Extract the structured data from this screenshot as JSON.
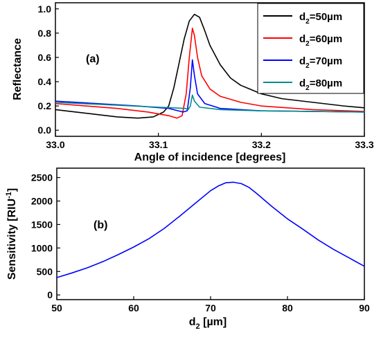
{
  "chart_data": [
    {
      "type": "line",
      "panel_label": "(a)",
      "xlabel": "Angle of incidence [degrees]",
      "ylabel": "Reflectance",
      "xlim": [
        33.0,
        33.3
      ],
      "ylim": [
        -0.05,
        1.05
      ],
      "xticks": [
        33.0,
        33.1,
        33.2,
        33.3
      ],
      "xtick_labels": [
        "33.0",
        "33.1",
        "33.2",
        "33.3"
      ],
      "yticks": [
        0.0,
        0.2,
        0.4,
        0.6,
        0.8,
        1.0
      ],
      "ytick_labels": [
        "0.0",
        "0.2",
        "0.4",
        "0.6",
        "0.8",
        "1.0"
      ],
      "grid": false,
      "legend_position": "top-right",
      "series": [
        {
          "name": "d2=50µm",
          "label_main": "d",
          "label_sub": "2",
          "label_rest": "=50µm",
          "color": "#000000",
          "points": [
            [
              33.0,
              0.17
            ],
            [
              33.02,
              0.15
            ],
            [
              33.04,
              0.13
            ],
            [
              33.06,
              0.11
            ],
            [
              33.08,
              0.1
            ],
            [
              33.095,
              0.11
            ],
            [
              33.105,
              0.15
            ],
            [
              33.11,
              0.2
            ],
            [
              33.115,
              0.35
            ],
            [
              33.12,
              0.55
            ],
            [
              33.125,
              0.75
            ],
            [
              33.13,
              0.9
            ],
            [
              33.135,
              0.955
            ],
            [
              33.14,
              0.93
            ],
            [
              33.145,
              0.82
            ],
            [
              33.15,
              0.7
            ],
            [
              33.16,
              0.54
            ],
            [
              33.17,
              0.43
            ],
            [
              33.18,
              0.37
            ],
            [
              33.2,
              0.3
            ],
            [
              33.22,
              0.26
            ],
            [
              33.25,
              0.23
            ],
            [
              33.28,
              0.2
            ],
            [
              33.3,
              0.185
            ]
          ]
        },
        {
          "name": "d2=60µm",
          "label_main": "d",
          "label_sub": "2",
          "label_rest": "=60µm",
          "color": "#ff0000",
          "points": [
            [
              33.0,
              0.22
            ],
            [
              33.03,
              0.2
            ],
            [
              33.06,
              0.18
            ],
            [
              33.09,
              0.15
            ],
            [
              33.11,
              0.12
            ],
            [
              33.118,
              0.1
            ],
            [
              33.123,
              0.12
            ],
            [
              33.127,
              0.3
            ],
            [
              33.13,
              0.6
            ],
            [
              33.133,
              0.84
            ],
            [
              33.135,
              0.78
            ],
            [
              33.138,
              0.6
            ],
            [
              33.142,
              0.45
            ],
            [
              33.15,
              0.34
            ],
            [
              33.16,
              0.28
            ],
            [
              33.18,
              0.23
            ],
            [
              33.2,
              0.2
            ],
            [
              33.25,
              0.17
            ],
            [
              33.3,
              0.155
            ]
          ]
        },
        {
          "name": "d2=70µm",
          "label_main": "d",
          "label_sub": "2",
          "label_rest": "=70µm",
          "color": "#0000ff",
          "points": [
            [
              33.0,
              0.24
            ],
            [
              33.04,
              0.22
            ],
            [
              33.08,
              0.2
            ],
            [
              33.11,
              0.18
            ],
            [
              33.124,
              0.15
            ],
            [
              33.128,
              0.16
            ],
            [
              33.131,
              0.35
            ],
            [
              33.133,
              0.58
            ],
            [
              33.135,
              0.45
            ],
            [
              33.138,
              0.3
            ],
            [
              33.145,
              0.22
            ],
            [
              33.16,
              0.18
            ],
            [
              33.2,
              0.16
            ],
            [
              33.3,
              0.15
            ]
          ]
        },
        {
          "name": "d2=80µm",
          "label_main": "d",
          "label_sub": "2",
          "label_rest": "=80µm",
          "color": "#008b8b",
          "points": [
            [
              33.0,
              0.23
            ],
            [
              33.05,
              0.21
            ],
            [
              33.1,
              0.19
            ],
            [
              33.126,
              0.18
            ],
            [
              33.129,
              0.17
            ],
            [
              33.131,
              0.2
            ],
            [
              33.133,
              0.29
            ],
            [
              33.135,
              0.24
            ],
            [
              33.14,
              0.19
            ],
            [
              33.16,
              0.17
            ],
            [
              33.2,
              0.16
            ],
            [
              33.3,
              0.15
            ]
          ]
        }
      ]
    },
    {
      "type": "line",
      "panel_label": "(b)",
      "xlabel_main": "d",
      "xlabel_sub": "2",
      "xlabel_rest": " [µm]",
      "ylabel_main": "Sensitivity [RIU",
      "ylabel_sup": "-1",
      "ylabel_rest": "]",
      "xlim": [
        50,
        90
      ],
      "ylim": [
        -100,
        2700
      ],
      "xticks": [
        50,
        60,
        70,
        80,
        90
      ],
      "xtick_labels": [
        "50",
        "60",
        "70",
        "80",
        "90"
      ],
      "yticks": [
        0,
        500,
        1000,
        1500,
        2000,
        2500
      ],
      "ytick_labels": [
        "0",
        "500",
        "1000",
        "1500",
        "2000",
        "2500"
      ],
      "grid": false,
      "series": [
        {
          "color": "#0000ff",
          "points": [
            [
              50,
              370
            ],
            [
              52,
              470
            ],
            [
              54,
              580
            ],
            [
              56,
              710
            ],
            [
              58,
              860
            ],
            [
              60,
              1020
            ],
            [
              62,
              1200
            ],
            [
              64,
              1420
            ],
            [
              66,
              1680
            ],
            [
              68,
              1950
            ],
            [
              70,
              2220
            ],
            [
              71,
              2320
            ],
            [
              72,
              2390
            ],
            [
              73,
              2400
            ],
            [
              74,
              2370
            ],
            [
              75,
              2290
            ],
            [
              76,
              2160
            ],
            [
              78,
              1880
            ],
            [
              80,
              1620
            ],
            [
              82,
              1400
            ],
            [
              84,
              1170
            ],
            [
              86,
              970
            ],
            [
              88,
              790
            ],
            [
              90,
              610
            ]
          ]
        }
      ]
    }
  ]
}
